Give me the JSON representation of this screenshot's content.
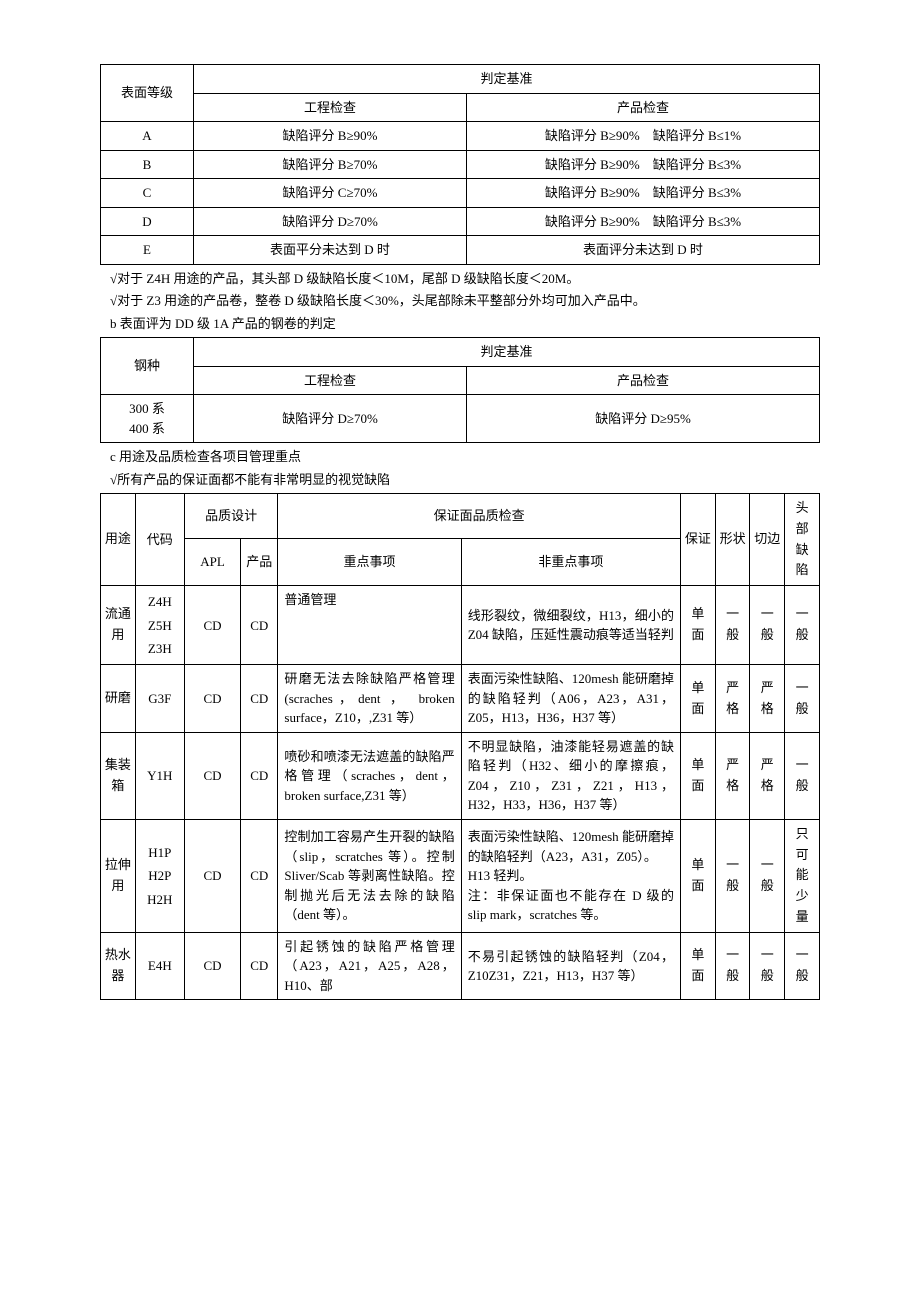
{
  "table1": {
    "headers": {
      "surface_grade": "表面等级",
      "criteria": "判定基准",
      "engineering": "工程检查",
      "product": "产品检查"
    },
    "rows": [
      {
        "grade": "A",
        "eng": "缺陷评分 B≥90%",
        "prod": "缺陷评分 B≥90%　缺陷评分 B≤1%"
      },
      {
        "grade": "B",
        "eng": "缺陷评分 B≥70%",
        "prod": "缺陷评分 B≥90%　缺陷评分 B≤3%"
      },
      {
        "grade": "C",
        "eng": "缺陷评分 C≥70%",
        "prod": "缺陷评分 B≥90%　缺陷评分 B≤3%"
      },
      {
        "grade": "D",
        "eng": "缺陷评分 D≥70%",
        "prod": "缺陷评分 B≥90%　缺陷评分 B≤3%"
      },
      {
        "grade": "E",
        "eng": "表面平分未达到 D 时",
        "prod": "表面评分未达到 D 时"
      }
    ]
  },
  "notes1": {
    "a": "√对于 Z4H 用途的产品，其头部 D 级缺陷长度＜10M，尾部 D 级缺陷长度＜20M。",
    "b": "√对于 Z3 用途的产品卷，整卷 D 级缺陷长度＜30%，头尾部除未平整部分外均可加入产品中。",
    "c": "b 表面评为 DD 级 1A 产品的钢卷的判定"
  },
  "table2": {
    "headers": {
      "steel": "钢种",
      "criteria": "判定基准",
      "engineering": "工程检查",
      "product": "产品检查"
    },
    "row": {
      "steel1": "300 系",
      "steel2": "400 系",
      "eng": "缺陷评分 D≥70%",
      "prod": "缺陷评分 D≥95%"
    }
  },
  "notes2": {
    "a": "c 用途及品质检查各项目管理重点",
    "b": "√所有产品的保证面都不能有非常明显的视觉缺陷"
  },
  "table3": {
    "headers": {
      "use": "用途",
      "code": "代码",
      "quality_design": "品质设计",
      "apl": "APL",
      "product": "产品",
      "surface_check": "保证面品质检查",
      "key": "重点事项",
      "nonkey": "非重点事项",
      "guarantee": "保证",
      "shape": "形状",
      "edge": "切边",
      "head_defect1": "头",
      "head_defect2": "部",
      "head_defect3": "缺",
      "head_defect4": "陷"
    },
    "rows": [
      {
        "use1": "流通",
        "use2": "用",
        "code1": "Z4H",
        "code2": "Z5H",
        "code3": "Z3H",
        "apl": "CD",
        "prod": "CD",
        "key": "普通管理",
        "nonkey": "线形裂纹，微细裂纹，H13，细小的 Z04 缺陷，压延性震动痕等适当轻判",
        "g1": "单",
        "g2": "面",
        "s1": "一",
        "s2": "般",
        "e1": "一",
        "e2": "般",
        "h1": "一",
        "h2": "般"
      },
      {
        "use1": "研磨",
        "use2": "",
        "code1": "G3F",
        "code2": "",
        "code3": "",
        "apl": "CD",
        "prod": "CD",
        "key": "研磨无法去除缺陷严格管理(scraches，dent ， broken surface，Z10，,Z31 等）",
        "nonkey": "表面污染性缺陷、120mesh 能研磨掉的缺陷轻判（A06，A23，A31，Z05，H13，H36，H37 等）",
        "g1": "单",
        "g2": "面",
        "s1": "严",
        "s2": "格",
        "e1": "严",
        "e2": "格",
        "h1": "一",
        "h2": "般"
      },
      {
        "use1": "集装",
        "use2": "箱",
        "code1": "Y1H",
        "code2": "",
        "code3": "",
        "apl": "CD",
        "prod": "CD",
        "key": "喷砂和喷漆无法遮盖的缺陷严格管理（scraches，dent，broken surface,Z31 等）",
        "nonkey": "不明显缺陷，油漆能轻易遮盖的缺陷轻判（H32、细小的摩擦痕，Z04，Z10，Z31，Z21，H13，H32，H33，H36，H37 等）",
        "g1": "单",
        "g2": "面",
        "s1": "严",
        "s2": "格",
        "e1": "严",
        "e2": "格",
        "h1": "一",
        "h2": "般"
      },
      {
        "use1": "拉伸",
        "use2": "用",
        "code1": "H1P",
        "code2": "H2P",
        "code3": "H2H",
        "apl": "CD",
        "prod": "CD",
        "key": "控制加工容易产生开裂的缺陷（slip，scratches 等）。控制 Sliver/Scab 等剥离性缺陷。控制抛光后无法去除的缺陷（dent 等）。",
        "nonkey": "表面污染性缺陷、120mesh 能研磨掉的缺陷轻判（A23，A31，Z05）。\nH13 轻判。\n注：非保证面也不能存在 D 级的 slip mark，scratches 等。",
        "g1": "单",
        "g2": "面",
        "s1": "一",
        "s2": "般",
        "e1": "一",
        "e2": "般",
        "hmulti": "只可能少量"
      },
      {
        "use1": "热水",
        "use2": "器",
        "code1": "E4H",
        "code2": "",
        "code3": "",
        "apl": "CD",
        "prod": "CD",
        "key": "引起锈蚀的缺陷严格管理（A23，A21，A25，A28，H10、部",
        "nonkey": "不易引起锈蚀的缺陷轻判（Z04，Z10Z31，Z21，H13，H37 等）",
        "g1": "单",
        "g2": "面",
        "s1": "一",
        "s2": "般",
        "e1": "一",
        "e2": "般",
        "h1": "一",
        "h2": "般"
      }
    ]
  }
}
